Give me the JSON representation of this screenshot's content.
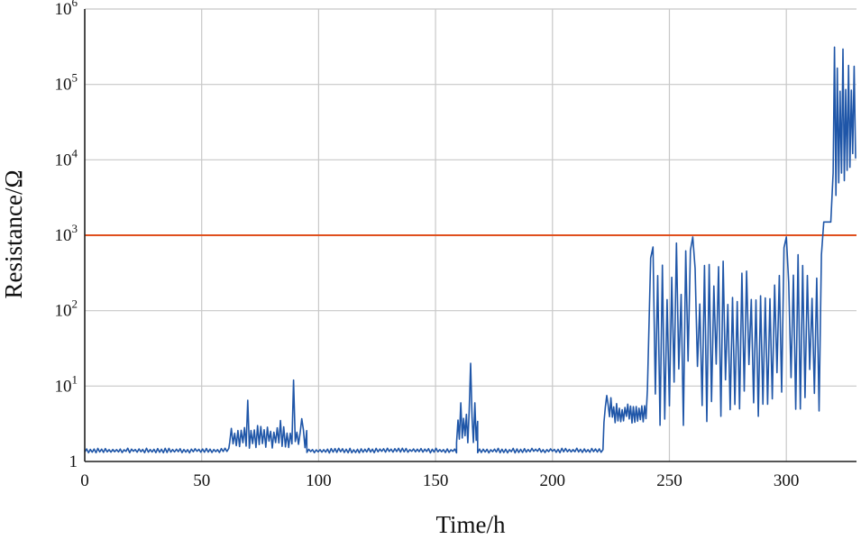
{
  "chart_data": {
    "type": "line",
    "title": "",
    "xlabel": "Time/h",
    "ylabel": "Resistance/Ω",
    "xlim": [
      0,
      330
    ],
    "ylim": [
      1,
      1000000
    ],
    "yscale": "log",
    "grid": true,
    "x_ticks": [
      0,
      50,
      100,
      150,
      200,
      250,
      300
    ],
    "y_ticks": [
      {
        "value": 1,
        "base": "1",
        "exp": ""
      },
      {
        "value": 10,
        "base": "10",
        "exp": "1"
      },
      {
        "value": 100,
        "base": "10",
        "exp": "2"
      },
      {
        "value": 1000,
        "base": "10",
        "exp": "3"
      },
      {
        "value": 10000,
        "base": "10",
        "exp": "4"
      },
      {
        "value": 100000,
        "base": "10",
        "exp": "5"
      },
      {
        "value": 1000000,
        "base": "10",
        "exp": "6"
      }
    ],
    "threshold": {
      "value": 1000,
      "color": "#e0501e"
    },
    "series": [
      {
        "color": "#1f56a8",
        "segments": [
          {
            "x0": 0,
            "x1": 62,
            "low": 1.3,
            "high": 1.5,
            "step": 0.8
          },
          {
            "x0": 62,
            "x1": 95,
            "low": 1.5,
            "high": 3,
            "step": 0.7
          },
          {
            "x0": 95,
            "x1": 159,
            "low": 1.3,
            "high": 1.5,
            "step": 0.8
          },
          {
            "x0": 159,
            "x1": 168,
            "low": 1.5,
            "high": 5,
            "step": 0.6
          },
          {
            "x0": 168,
            "x1": 222,
            "low": 1.3,
            "high": 1.5,
            "step": 0.8
          },
          {
            "x0": 222,
            "x1": 241,
            "low": 3.2,
            "high": 6,
            "step": 0.6
          },
          {
            "x0": 242,
            "x1": 315,
            "low": 3,
            "high": 850,
            "step": 1.0
          },
          {
            "x0": 316,
            "x1": 319.5,
            "low": 1500,
            "high": 1500,
            "step": 1.0
          },
          {
            "x0": 320,
            "x1": 330,
            "low": 3000,
            "high": 480000,
            "step": 0.6
          }
        ],
        "spikes": [
          {
            "x": 70,
            "y": 6.5
          },
          {
            "x": 84,
            "y": 3.5
          },
          {
            "x": 89.5,
            "y": 12
          },
          {
            "x": 93,
            "y": 3.7
          },
          {
            "x": 160.5,
            "y": 6
          },
          {
            "x": 165,
            "y": 20
          },
          {
            "x": 167,
            "y": 6
          },
          {
            "x": 223,
            "y": 7.5
          },
          {
            "x": 225,
            "y": 7
          },
          {
            "x": 240.5,
            "y": 9
          },
          {
            "x": 242,
            "y": 500
          },
          {
            "x": 243,
            "y": 700
          },
          {
            "x": 260,
            "y": 950
          },
          {
            "x": 300,
            "y": 950
          }
        ]
      }
    ]
  }
}
